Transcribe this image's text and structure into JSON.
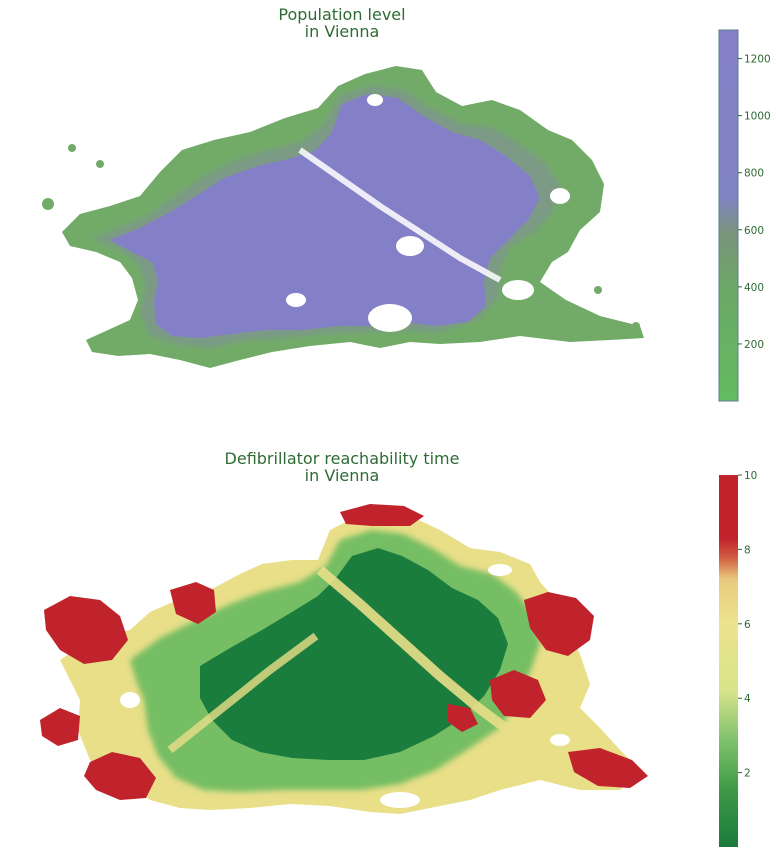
{
  "panels": [
    {
      "title_line1": "Population level",
      "title_line2": "in Vienna",
      "colorbar": {
        "min": 0,
        "max": 1300,
        "ticks": [
          "200",
          "400",
          "600",
          "800",
          "1000",
          "1200"
        ],
        "tick_values": [
          200,
          400,
          600,
          800,
          1000,
          1200
        ],
        "colors": [
          "#63bb60",
          "#6ba867",
          "#79947a",
          "#8184c4",
          "#8480c8"
        ]
      },
      "map_colors": {
        "low": "#6fad67",
        "mid": "#7c9a8c",
        "high": "#8480c8"
      }
    },
    {
      "title_line1": "Defibrillator reachability time",
      "title_line2": "in Vienna",
      "colorbar": {
        "min": 0,
        "max": 10,
        "ticks": [
          "2",
          "4",
          "6",
          "8",
          "10"
        ],
        "tick_values": [
          2,
          4,
          6,
          8,
          10
        ],
        "colors": [
          "#1a7a3c",
          "#3d9946",
          "#7cc06a",
          "#d7e48a",
          "#ece38d",
          "#e8c97e",
          "#d05a40",
          "#c0232b",
          "#c0232b"
        ]
      },
      "map_colors": {
        "fast": "#1b7d3d",
        "medium": "#75bd62",
        "slow": "#e9e08a",
        "very_slow": "#c0232b"
      }
    }
  ]
}
